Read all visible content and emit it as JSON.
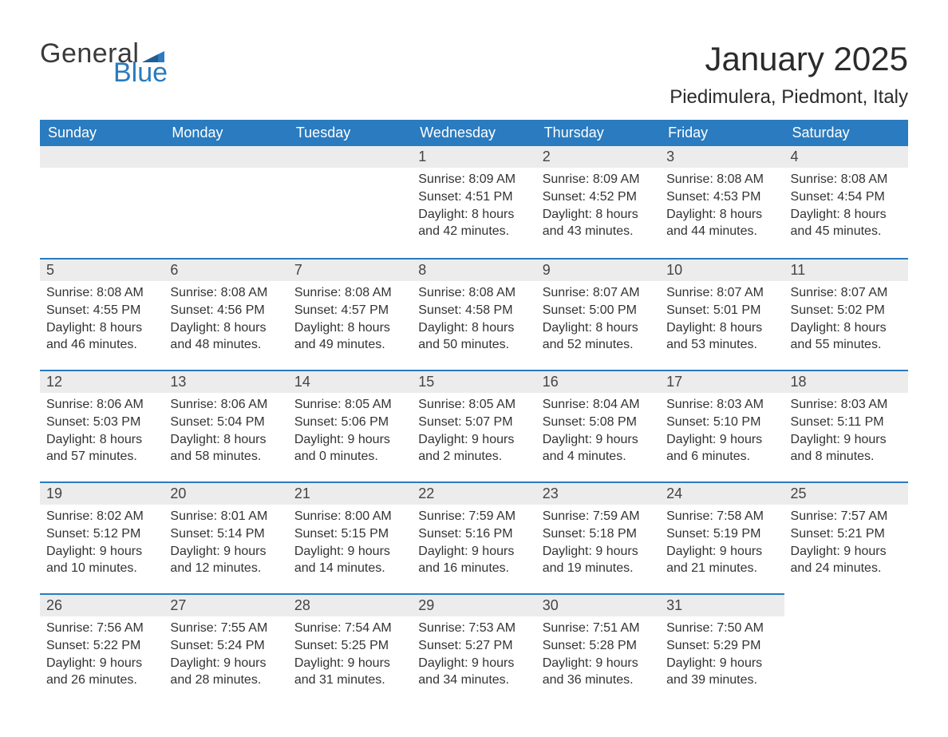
{
  "logo": {
    "text_general": "General",
    "text_blue": "Blue",
    "flag_color": "#2a7bbf"
  },
  "title": "January 2025",
  "location": "Piedimulera, Piedmont, Italy",
  "colors": {
    "header_bg": "#2a7bbf",
    "header_text": "#ffffff",
    "daynum_bg": "#ececec",
    "border_top": "#2a7bbf",
    "body_text": "#333333",
    "page_bg": "#ffffff"
  },
  "day_headers": [
    "Sunday",
    "Monday",
    "Tuesday",
    "Wednesday",
    "Thursday",
    "Friday",
    "Saturday"
  ],
  "weeks": [
    [
      null,
      null,
      null,
      {
        "n": "1",
        "sunrise": "Sunrise: 8:09 AM",
        "sunset": "Sunset: 4:51 PM",
        "dl1": "Daylight: 8 hours",
        "dl2": "and 42 minutes."
      },
      {
        "n": "2",
        "sunrise": "Sunrise: 8:09 AM",
        "sunset": "Sunset: 4:52 PM",
        "dl1": "Daylight: 8 hours",
        "dl2": "and 43 minutes."
      },
      {
        "n": "3",
        "sunrise": "Sunrise: 8:08 AM",
        "sunset": "Sunset: 4:53 PM",
        "dl1": "Daylight: 8 hours",
        "dl2": "and 44 minutes."
      },
      {
        "n": "4",
        "sunrise": "Sunrise: 8:08 AM",
        "sunset": "Sunset: 4:54 PM",
        "dl1": "Daylight: 8 hours",
        "dl2": "and 45 minutes."
      }
    ],
    [
      {
        "n": "5",
        "sunrise": "Sunrise: 8:08 AM",
        "sunset": "Sunset: 4:55 PM",
        "dl1": "Daylight: 8 hours",
        "dl2": "and 46 minutes."
      },
      {
        "n": "6",
        "sunrise": "Sunrise: 8:08 AM",
        "sunset": "Sunset: 4:56 PM",
        "dl1": "Daylight: 8 hours",
        "dl2": "and 48 minutes."
      },
      {
        "n": "7",
        "sunrise": "Sunrise: 8:08 AM",
        "sunset": "Sunset: 4:57 PM",
        "dl1": "Daylight: 8 hours",
        "dl2": "and 49 minutes."
      },
      {
        "n": "8",
        "sunrise": "Sunrise: 8:08 AM",
        "sunset": "Sunset: 4:58 PM",
        "dl1": "Daylight: 8 hours",
        "dl2": "and 50 minutes."
      },
      {
        "n": "9",
        "sunrise": "Sunrise: 8:07 AM",
        "sunset": "Sunset: 5:00 PM",
        "dl1": "Daylight: 8 hours",
        "dl2": "and 52 minutes."
      },
      {
        "n": "10",
        "sunrise": "Sunrise: 8:07 AM",
        "sunset": "Sunset: 5:01 PM",
        "dl1": "Daylight: 8 hours",
        "dl2": "and 53 minutes."
      },
      {
        "n": "11",
        "sunrise": "Sunrise: 8:07 AM",
        "sunset": "Sunset: 5:02 PM",
        "dl1": "Daylight: 8 hours",
        "dl2": "and 55 minutes."
      }
    ],
    [
      {
        "n": "12",
        "sunrise": "Sunrise: 8:06 AM",
        "sunset": "Sunset: 5:03 PM",
        "dl1": "Daylight: 8 hours",
        "dl2": "and 57 minutes."
      },
      {
        "n": "13",
        "sunrise": "Sunrise: 8:06 AM",
        "sunset": "Sunset: 5:04 PM",
        "dl1": "Daylight: 8 hours",
        "dl2": "and 58 minutes."
      },
      {
        "n": "14",
        "sunrise": "Sunrise: 8:05 AM",
        "sunset": "Sunset: 5:06 PM",
        "dl1": "Daylight: 9 hours",
        "dl2": "and 0 minutes."
      },
      {
        "n": "15",
        "sunrise": "Sunrise: 8:05 AM",
        "sunset": "Sunset: 5:07 PM",
        "dl1": "Daylight: 9 hours",
        "dl2": "and 2 minutes."
      },
      {
        "n": "16",
        "sunrise": "Sunrise: 8:04 AM",
        "sunset": "Sunset: 5:08 PM",
        "dl1": "Daylight: 9 hours",
        "dl2": "and 4 minutes."
      },
      {
        "n": "17",
        "sunrise": "Sunrise: 8:03 AM",
        "sunset": "Sunset: 5:10 PM",
        "dl1": "Daylight: 9 hours",
        "dl2": "and 6 minutes."
      },
      {
        "n": "18",
        "sunrise": "Sunrise: 8:03 AM",
        "sunset": "Sunset: 5:11 PM",
        "dl1": "Daylight: 9 hours",
        "dl2": "and 8 minutes."
      }
    ],
    [
      {
        "n": "19",
        "sunrise": "Sunrise: 8:02 AM",
        "sunset": "Sunset: 5:12 PM",
        "dl1": "Daylight: 9 hours",
        "dl2": "and 10 minutes."
      },
      {
        "n": "20",
        "sunrise": "Sunrise: 8:01 AM",
        "sunset": "Sunset: 5:14 PM",
        "dl1": "Daylight: 9 hours",
        "dl2": "and 12 minutes."
      },
      {
        "n": "21",
        "sunrise": "Sunrise: 8:00 AM",
        "sunset": "Sunset: 5:15 PM",
        "dl1": "Daylight: 9 hours",
        "dl2": "and 14 minutes."
      },
      {
        "n": "22",
        "sunrise": "Sunrise: 7:59 AM",
        "sunset": "Sunset: 5:16 PM",
        "dl1": "Daylight: 9 hours",
        "dl2": "and 16 minutes."
      },
      {
        "n": "23",
        "sunrise": "Sunrise: 7:59 AM",
        "sunset": "Sunset: 5:18 PM",
        "dl1": "Daylight: 9 hours",
        "dl2": "and 19 minutes."
      },
      {
        "n": "24",
        "sunrise": "Sunrise: 7:58 AM",
        "sunset": "Sunset: 5:19 PM",
        "dl1": "Daylight: 9 hours",
        "dl2": "and 21 minutes."
      },
      {
        "n": "25",
        "sunrise": "Sunrise: 7:57 AM",
        "sunset": "Sunset: 5:21 PM",
        "dl1": "Daylight: 9 hours",
        "dl2": "and 24 minutes."
      }
    ],
    [
      {
        "n": "26",
        "sunrise": "Sunrise: 7:56 AM",
        "sunset": "Sunset: 5:22 PM",
        "dl1": "Daylight: 9 hours",
        "dl2": "and 26 minutes."
      },
      {
        "n": "27",
        "sunrise": "Sunrise: 7:55 AM",
        "sunset": "Sunset: 5:24 PM",
        "dl1": "Daylight: 9 hours",
        "dl2": "and 28 minutes."
      },
      {
        "n": "28",
        "sunrise": "Sunrise: 7:54 AM",
        "sunset": "Sunset: 5:25 PM",
        "dl1": "Daylight: 9 hours",
        "dl2": "and 31 minutes."
      },
      {
        "n": "29",
        "sunrise": "Sunrise: 7:53 AM",
        "sunset": "Sunset: 5:27 PM",
        "dl1": "Daylight: 9 hours",
        "dl2": "and 34 minutes."
      },
      {
        "n": "30",
        "sunrise": "Sunrise: 7:51 AM",
        "sunset": "Sunset: 5:28 PM",
        "dl1": "Daylight: 9 hours",
        "dl2": "and 36 minutes."
      },
      {
        "n": "31",
        "sunrise": "Sunrise: 7:50 AM",
        "sunset": "Sunset: 5:29 PM",
        "dl1": "Daylight: 9 hours",
        "dl2": "and 39 minutes."
      },
      null
    ]
  ]
}
